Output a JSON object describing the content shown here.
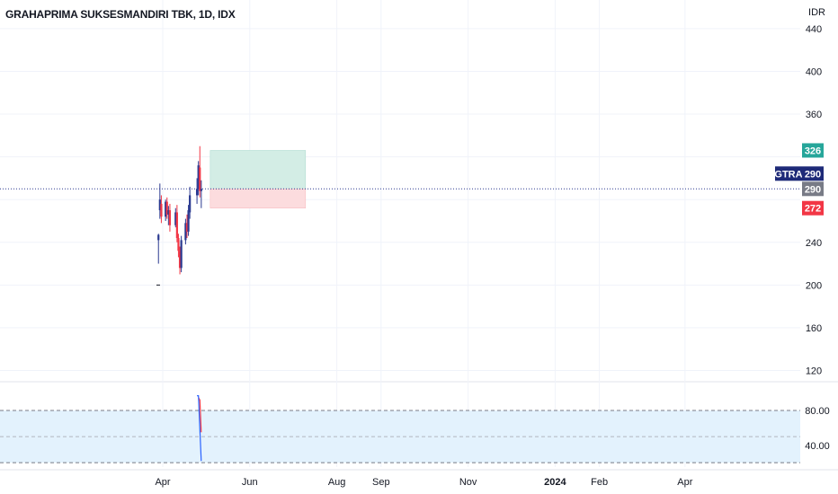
{
  "header": {
    "title": "GRAHAPRIMA SUKSESMANDIRI TBK, 1D, IDX",
    "currency": "IDR"
  },
  "colors": {
    "up": "#2a3990",
    "down": "#f23645",
    "profit_fill": "#d3ede5",
    "loss_fill": "#fcdcde",
    "rsi_band": "#e3f2fd",
    "target_badge": "#26a69a",
    "stop_badge": "#f23645",
    "ticker_badge": "#1e2a78",
    "price_badge": "#787b86",
    "price_line": "#2a3990"
  },
  "badges": {
    "target": "326",
    "entry": "290",
    "stop": "272",
    "ticker": "GTRA",
    "ticker_price": "290"
  },
  "chart_data": [
    {
      "type": "candlestick",
      "title": "GRAHAPRIMA SUKSESMANDIRI TBK, 1D, IDX",
      "y_ticks": [
        120,
        160,
        200,
        240,
        360,
        400,
        440
      ],
      "ylim": [
        112,
        450
      ],
      "x_ticks": [
        "Apr",
        "Jun",
        "Aug",
        "Sep",
        "Nov",
        "2024",
        "Feb",
        "Apr"
      ],
      "last_price": 290,
      "candles": [
        {
          "date": "2023-03-29",
          "o": 242,
          "h": 248,
          "l": 220,
          "c": 247
        },
        {
          "date": "2023-03-30",
          "o": 270,
          "h": 295,
          "l": 262,
          "c": 280
        },
        {
          "date": "2023-03-31",
          "o": 276,
          "h": 284,
          "l": 258,
          "c": 264
        },
        {
          "date": "2023-04-03",
          "o": 264,
          "h": 280,
          "l": 260,
          "c": 278
        },
        {
          "date": "2023-04-04",
          "o": 278,
          "h": 282,
          "l": 262,
          "c": 266
        },
        {
          "date": "2023-04-05",
          "o": 266,
          "h": 274,
          "l": 256,
          "c": 270
        },
        {
          "date": "2023-04-06",
          "o": 270,
          "h": 276,
          "l": 250,
          "c": 256
        },
        {
          "date": "2023-04-10",
          "o": 256,
          "h": 272,
          "l": 254,
          "c": 268
        },
        {
          "date": "2023-04-11",
          "o": 268,
          "h": 275,
          "l": 240,
          "c": 244
        },
        {
          "date": "2023-04-12",
          "o": 244,
          "h": 248,
          "l": 226,
          "c": 232
        },
        {
          "date": "2023-04-13",
          "o": 232,
          "h": 236,
          "l": 210,
          "c": 216
        },
        {
          "date": "2023-04-14",
          "o": 216,
          "h": 246,
          "l": 212,
          "c": 242
        },
        {
          "date": "2023-04-17",
          "o": 242,
          "h": 262,
          "l": 238,
          "c": 258
        },
        {
          "date": "2023-04-18",
          "o": 258,
          "h": 266,
          "l": 244,
          "c": 250
        },
        {
          "date": "2023-04-19",
          "o": 250,
          "h": 275,
          "l": 246,
          "c": 270
        },
        {
          "date": "2023-04-20",
          "o": 268,
          "h": 292,
          "l": 262,
          "c": 284
        },
        {
          "date": "2023-04-25",
          "o": 284,
          "h": 300,
          "l": 276,
          "c": 290
        },
        {
          "date": "2023-04-26",
          "o": 290,
          "h": 316,
          "l": 284,
          "c": 312
        },
        {
          "date": "2023-04-27",
          "o": 310,
          "h": 330,
          "l": 282,
          "c": 288
        },
        {
          "date": "2023-04-28",
          "o": 288,
          "h": 298,
          "l": 272,
          "c": 290
        }
      ],
      "position": {
        "type": "long",
        "entry": 290,
        "target": 326,
        "stop": 272,
        "from_date": "2023-04-28",
        "to_date": "2023-06-30"
      }
    },
    {
      "type": "line",
      "indicator": "oscillator",
      "ylim": [
        15,
        110
      ],
      "y_ticks": [
        80.0,
        40.0
      ],
      "band": [
        20,
        80
      ],
      "midline": 50,
      "series": [
        {
          "color": "#f23645",
          "values": [
            {
              "date": "2023-04-26",
              "y": 95
            },
            {
              "date": "2023-04-27",
              "y": 92
            },
            {
              "date": "2023-04-28",
              "y": 55
            }
          ]
        },
        {
          "color": "#2962ff",
          "values": [
            {
              "date": "2023-04-25",
              "y": 97
            },
            {
              "date": "2023-04-26",
              "y": 97
            },
            {
              "date": "2023-04-28",
              "y": 22
            }
          ]
        }
      ]
    }
  ]
}
